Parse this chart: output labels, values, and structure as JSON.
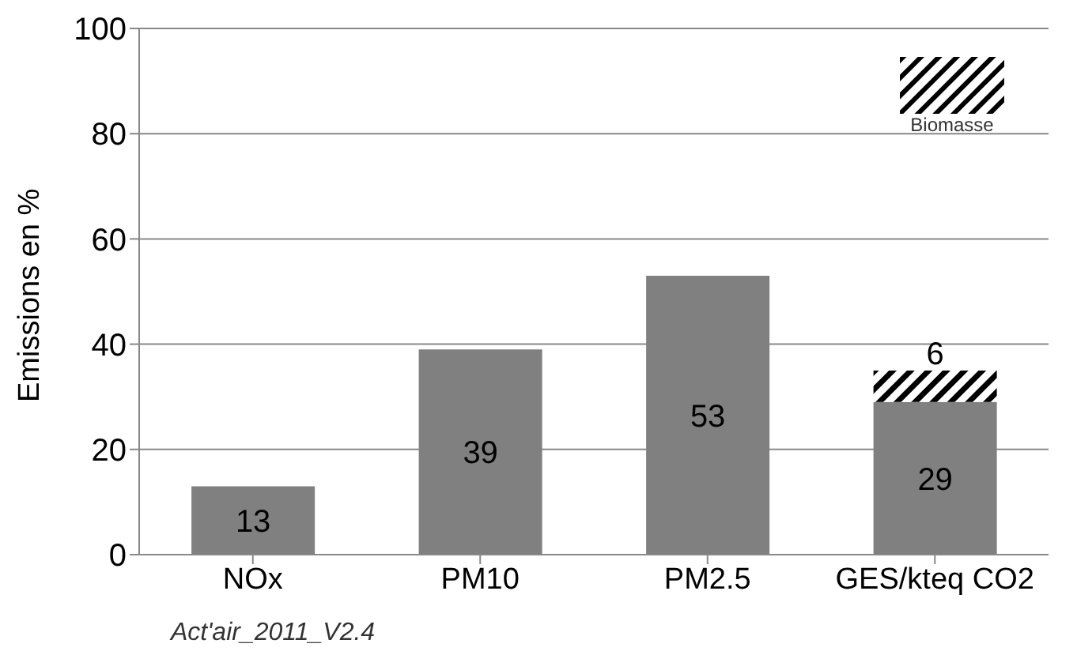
{
  "chart_data": {
    "type": "bar",
    "ylabel": "Emissions en %",
    "categories": [
      "NOx",
      "PM10",
      "PM2.5",
      "GES/kteq CO2"
    ],
    "stacked": true,
    "series": [
      {
        "color": "#808080",
        "values": [
          13,
          39,
          53,
          29
        ]
      },
      {
        "name": "Biomasse",
        "color": "#000000",
        "values": [
          null,
          null,
          null,
          6
        ]
      }
    ],
    "ylim": [
      0,
      100
    ],
    "yticks": [
      0,
      20,
      40,
      60,
      80,
      100
    ],
    "grid": "y",
    "data_labels": true,
    "legend": "top right",
    "annotations": [
      "Act'air_2011_V2.4"
    ]
  }
}
